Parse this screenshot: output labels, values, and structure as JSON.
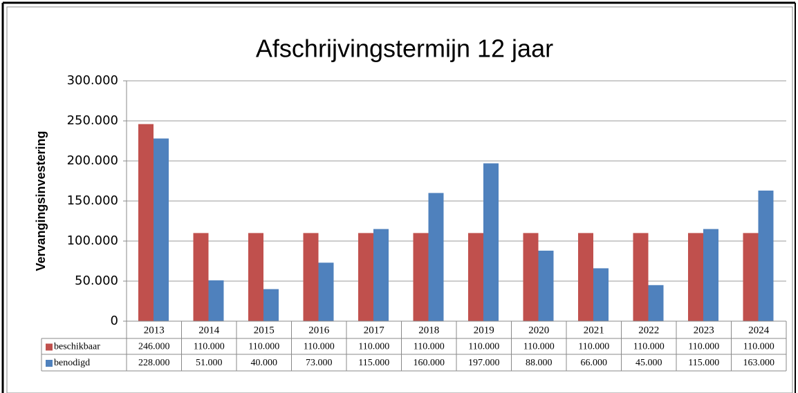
{
  "chart_data": {
    "type": "bar",
    "title": "Afschrijvingstermijn 12 jaar",
    "y_label": "Vervangingsinvestering",
    "categories": [
      "2013",
      "2014",
      "2015",
      "2016",
      "2017",
      "2018",
      "2019",
      "2020",
      "2021",
      "2022",
      "2023",
      "2024"
    ],
    "series": [
      {
        "name": "beschikbaar",
        "color": "#c0504d",
        "values": [
          246000,
          110000,
          110000,
          110000,
          110000,
          110000,
          110000,
          110000,
          110000,
          110000,
          110000,
          110000
        ],
        "value_labels": [
          "246.000",
          "110.000",
          "110.000",
          "110.000",
          "110.000",
          "110.000",
          "110.000",
          "110.000",
          "110.000",
          "110.000",
          "110.000",
          "110.000"
        ]
      },
      {
        "name": "benodigd",
        "color": "#4f81bd",
        "values": [
          228000,
          51000,
          40000,
          73000,
          115000,
          160000,
          197000,
          88000,
          66000,
          45000,
          115000,
          163000
        ],
        "value_labels": [
          "228.000",
          "51.000",
          "40.000",
          "73.000",
          "115.000",
          "160.000",
          "197.000",
          "88.000",
          "66.000",
          "45.000",
          "115.000",
          "163.000"
        ]
      }
    ],
    "ylim": [
      0,
      300000
    ],
    "yticks": [
      0,
      {
        "value": 50000,
        "label": "50.000"
      },
      {
        "value": 100000,
        "label": "100.000"
      },
      {
        "value": 150000,
        "label": "150.000"
      },
      {
        "value": 200000,
        "label": "200.000"
      },
      {
        "value": 250000,
        "label": "250.000"
      },
      {
        "value": 300000,
        "label": "300.000"
      }
    ],
    "grid": true
  }
}
